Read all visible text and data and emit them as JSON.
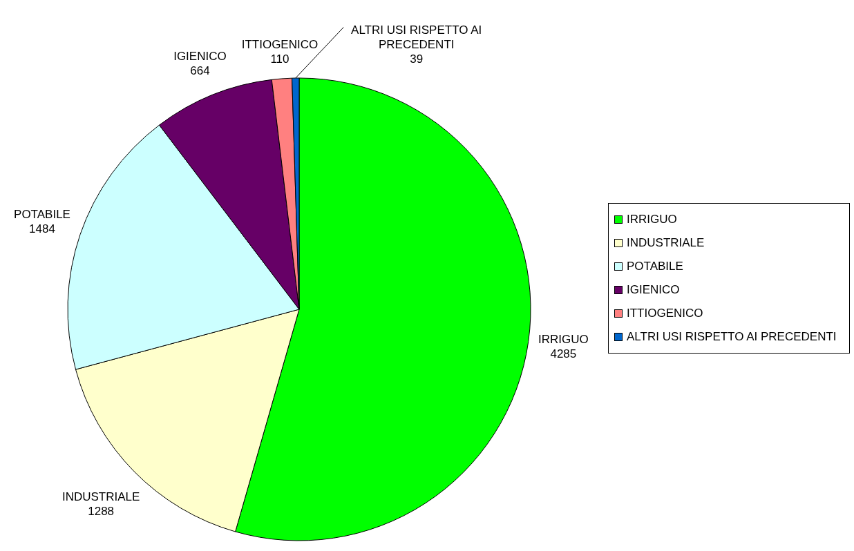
{
  "chart_data": {
    "type": "pie",
    "categories": [
      "IRRIGUO",
      "INDUSTRIALE",
      "POTABILE",
      "IGIENICO",
      "ITTIOGENICO",
      "ALTRI USI RISPETTO AI PRECEDENTI"
    ],
    "values": [
      4285,
      1288,
      1484,
      664,
      110,
      39
    ],
    "colors": [
      "#00ff00",
      "#ffffcc",
      "#ccffff",
      "#660066",
      "#ff8080",
      "#0066cc"
    ],
    "data_labels": true,
    "legend": "right"
  }
}
